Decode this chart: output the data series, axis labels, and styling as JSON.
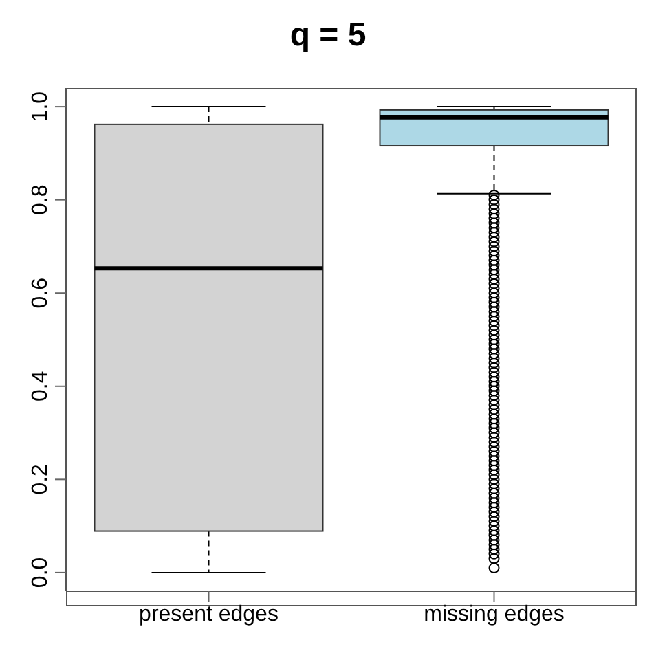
{
  "chart_data": {
    "type": "box",
    "title": "q = 5",
    "categories": [
      "present edges",
      "missing edges"
    ],
    "colors": [
      "#d3d3d3",
      "#add8e6"
    ],
    "boxes": [
      {
        "low": 0,
        "q1": 0.089,
        "median": 0.653,
        "q3": 0.962,
        "high": 1.0
      },
      {
        "low": 0.813,
        "q1": 0.916,
        "median": 0.977,
        "q3": 0.993,
        "high": 1.0,
        "outliers": [
          0.01,
          0.03,
          0.04,
          0.05,
          0.06,
          0.07,
          0.08,
          0.09,
          0.1,
          0.11,
          0.12,
          0.13,
          0.14,
          0.15,
          0.16,
          0.17,
          0.18,
          0.19,
          0.2,
          0.21,
          0.22,
          0.23,
          0.24,
          0.25,
          0.26,
          0.27,
          0.28,
          0.29,
          0.3,
          0.31,
          0.32,
          0.33,
          0.34,
          0.35,
          0.36,
          0.37,
          0.38,
          0.39,
          0.4,
          0.41,
          0.42,
          0.43,
          0.44,
          0.45,
          0.46,
          0.47,
          0.48,
          0.49,
          0.5,
          0.51,
          0.52,
          0.53,
          0.54,
          0.55,
          0.56,
          0.57,
          0.58,
          0.59,
          0.6,
          0.61,
          0.62,
          0.63,
          0.64,
          0.65,
          0.66,
          0.67,
          0.68,
          0.69,
          0.7,
          0.71,
          0.72,
          0.73,
          0.74,
          0.75,
          0.76,
          0.77,
          0.78,
          0.79,
          0.8,
          0.81
        ]
      }
    ],
    "ylim": [
      -0.04,
      1.04
    ],
    "yticks": [
      {
        "value": 0,
        "label": "0.0"
      },
      0.2,
      0.4,
      0.6,
      0.8,
      {
        "value": 1,
        "label": "1.0"
      }
    ],
    "marker": "circle"
  }
}
